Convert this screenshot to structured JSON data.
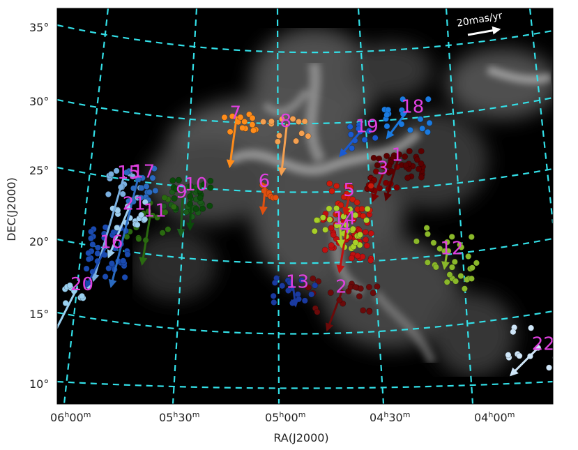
{
  "chart_data": {
    "type": "scatter",
    "title": "",
    "xlabel": "RA(J2000)",
    "ylabel": "DEC(J2000)",
    "x_ticks": [
      {
        "h": "06",
        "m": "00"
      },
      {
        "h": "05",
        "m": "30"
      },
      {
        "h": "05",
        "m": "00"
      },
      {
        "h": "04",
        "m": "30"
      },
      {
        "h": "04",
        "m": "00"
      }
    ],
    "y_ticks": [
      "35°",
      "30°",
      "25°",
      "20°",
      "15°",
      "10°"
    ],
    "grid": true,
    "grid_color": "#33e0e8",
    "background": "#000000",
    "scale_arrow_label": "20mas/yr",
    "groups": [
      {
        "id": "1",
        "color": "#5a0000",
        "ra_h": 4.45,
        "dec": 25.6
      },
      {
        "id": "2",
        "color": "#6a0a0a",
        "ra_h": 4.72,
        "dec": 16.2
      },
      {
        "id": "3",
        "color": "#7a0000",
        "ra_h": 4.52,
        "dec": 24.6
      },
      {
        "id": "4",
        "color": "#c01010",
        "ra_h": 4.7,
        "dec": 20.4
      },
      {
        "id": "5",
        "color": "#cc1a0a",
        "ra_h": 4.68,
        "dec": 23.0
      },
      {
        "id": "6",
        "color": "#e05010",
        "ra_h": 5.08,
        "dec": 23.6
      },
      {
        "id": "7",
        "color": "#ff8c1a",
        "ra_h": 5.22,
        "dec": 28.4
      },
      {
        "id": "8",
        "color": "#f5a050",
        "ra_h": 4.98,
        "dec": 27.8
      },
      {
        "id": "9",
        "color": "#1a5a1a",
        "ra_h": 5.47,
        "dec": 23.0
      },
      {
        "id": "10",
        "color": "#0a4a0a",
        "ra_h": 5.43,
        "dec": 23.5
      },
      {
        "id": "11",
        "color": "#2a6a10",
        "ra_h": 5.62,
        "dec": 21.8
      },
      {
        "id": "12",
        "color": "#8ab82a",
        "ra_h": 4.23,
        "dec": 19.2
      },
      {
        "id": "13",
        "color": "#1a3aa0",
        "ra_h": 4.95,
        "dec": 16.5
      },
      {
        "id": "14",
        "color": "#a8d028",
        "ra_h": 4.73,
        "dec": 21.0
      },
      {
        "id": "15",
        "color": "#7ab0e0",
        "ra_h": 5.75,
        "dec": 24.6
      },
      {
        "id": "16",
        "color": "#1a4ab0",
        "ra_h": 5.82,
        "dec": 19.8
      },
      {
        "id": "17",
        "color": "#2a6ac0",
        "ra_h": 5.68,
        "dec": 24.6
      },
      {
        "id": "18",
        "color": "#1a7ae0",
        "ra_h": 4.4,
        "dec": 29.0
      },
      {
        "id": "19",
        "color": "#1a5ad0",
        "ra_h": 4.62,
        "dec": 27.5
      },
      {
        "id": "20",
        "color": "#9ad0f0",
        "ra_h": 5.95,
        "dec": 17.0
      },
      {
        "id": "21",
        "color": "#a0d0f0",
        "ra_h": 5.72,
        "dec": 22.4
      },
      {
        "id": "22",
        "color": "#cfe6f8",
        "ra_h": 3.82,
        "dec": 13.0
      }
    ]
  }
}
